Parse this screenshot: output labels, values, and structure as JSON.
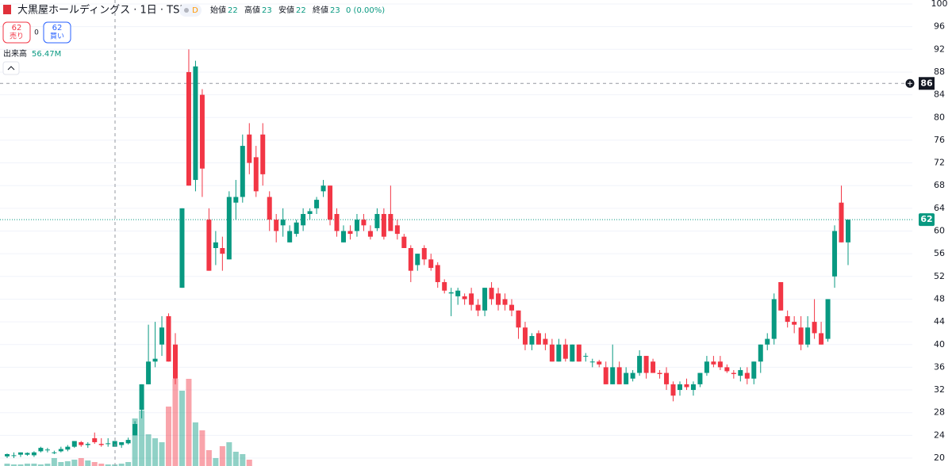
{
  "header": {
    "symbol": "大黒屋ホールディングス · 1日 · TSE",
    "interval": "D",
    "stats": [
      {
        "label": "始値",
        "value": 22
      },
      {
        "label": "高値",
        "value": 23
      },
      {
        "label": "安値",
        "value": 22
      },
      {
        "label": "終値",
        "value": 23
      }
    ],
    "change": "0 (0.00%)",
    "sell": {
      "price": 62,
      "label": "売り"
    },
    "spread": 0,
    "buy": {
      "price": 62,
      "label": "買い"
    }
  },
  "chart_data": {
    "type": "candlestick",
    "open": [
      20.3,
      20.5,
      20.6,
      20.6,
      20.5,
      21.2,
      21.5,
      21,
      21.2,
      21.5,
      22,
      22.8,
      22.3,
      23.5,
      22.5,
      22.5,
      22,
      22.3,
      22.6,
      24,
      28.5,
      33,
      37,
      40,
      45,
      40,
      50,
      88,
      69,
      84,
      62,
      57,
      57,
      55,
      65,
      66,
      77,
      73,
      77,
      66,
      62,
      61,
      58,
      59.5,
      61,
      63,
      64,
      67,
      68,
      63,
      58,
      60,
      60,
      62,
      60,
      60.5,
      63,
      63,
      61,
      59,
      57,
      54,
      57,
      55,
      54,
      51,
      49,
      48.5,
      48.5,
      49,
      47,
      46,
      50,
      49,
      48,
      47,
      46,
      43,
      40,
      42,
      41,
      40,
      37,
      40,
      37,
      40,
      38,
      37,
      37,
      36,
      33,
      36,
      33,
      34,
      35,
      38,
      37,
      35,
      35,
      33,
      32,
      33,
      32,
      33,
      35,
      37,
      37,
      36,
      35,
      34.5,
      35,
      34,
      37,
      40,
      41,
      51,
      45,
      44,
      43,
      40,
      44,
      42,
      41,
      52,
      65,
      58
    ],
    "high": [
      20.8,
      21,
      21,
      21,
      21.2,
      22,
      21.8,
      21.3,
      22,
      22.3,
      23,
      23,
      22.8,
      24.5,
      23.5,
      23.5,
      23,
      22.8,
      23.6,
      26.5,
      33,
      43.5,
      44,
      45,
      45.5,
      42,
      64,
      92,
      90,
      85,
      64,
      60,
      59,
      67,
      69,
      77,
      79,
      75,
      79,
      67,
      63,
      64,
      61,
      62,
      64,
      64,
      66,
      69,
      68,
      64,
      61,
      61,
      63,
      63,
      61,
      64,
      64,
      68,
      62,
      59.5,
      57.5,
      56,
      57.5,
      56,
      54.5,
      51.5,
      50,
      50,
      49,
      50,
      48,
      50,
      51,
      50,
      49,
      48,
      46,
      44,
      42,
      42.5,
      42,
      41,
      41,
      41,
      40,
      40,
      38.5,
      37.5,
      37.3,
      37,
      40,
      37,
      36,
      35.5,
      39,
      38,
      37.5,
      35.5,
      36,
      33.5,
      33.5,
      34,
      33.5,
      35,
      38,
      38,
      38,
      36.5,
      35.5,
      36,
      36,
      37,
      40,
      42,
      49,
      51,
      46,
      45,
      45,
      45,
      48,
      44,
      48,
      61,
      68,
      62
    ],
    "low": [
      20,
      20,
      20.2,
      20.4,
      20.2,
      21,
      21,
      20.7,
      21,
      21.2,
      21.8,
      22,
      21.8,
      22.5,
      22,
      22,
      22,
      21.8,
      22.4,
      24,
      27,
      33,
      36,
      38,
      37,
      33,
      50,
      68,
      67,
      66,
      53,
      54,
      53,
      55,
      62,
      65,
      70,
      66,
      68,
      60,
      58,
      59,
      58,
      59,
      60,
      62,
      63,
      66,
      61,
      59,
      58,
      58.5,
      59,
      60,
      58.5,
      60,
      58.5,
      60,
      58.5,
      57,
      51,
      53,
      54,
      53,
      50,
      49,
      45,
      47,
      47,
      46,
      45,
      45,
      47,
      46,
      46,
      45,
      41,
      39,
      39,
      40,
      39,
      37,
      37,
      37,
      37,
      37,
      37,
      36,
      36,
      33,
      33,
      33,
      33,
      33.5,
      34.5,
      34,
      35,
      34,
      32,
      30,
      31,
      32,
      31,
      32.5,
      34.5,
      36,
      35.5,
      35,
      34,
      33.5,
      33,
      33,
      35,
      39,
      40,
      46,
      43,
      42,
      39,
      39.5,
      41,
      40,
      40.5,
      50,
      58,
      54
    ],
    "close": [
      20.7,
      20.5,
      21,
      20.9,
      21,
      21.8,
      21.5,
      21,
      21.6,
      22,
      23,
      22.3,
      22.5,
      22.8,
      22.3,
      22.6,
      23,
      22.8,
      23.2,
      26,
      33,
      37,
      37.5,
      43,
      37,
      34,
      64,
      68,
      89,
      71,
      53,
      58,
      56,
      66,
      66,
      75,
      72,
      67,
      70,
      62,
      60,
      62,
      60,
      61.5,
      63,
      63.5,
      65.5,
      68,
      62,
      60,
      60,
      59.5,
      62,
      61,
      59,
      63,
      59,
      60,
      59.5,
      57,
      53,
      56,
      55,
      53.5,
      51,
      49.5,
      49.2,
      49.5,
      48,
      47,
      46,
      50,
      48,
      47,
      47,
      46,
      43,
      40,
      41.5,
      40,
      40,
      37,
      40,
      37.5,
      40,
      37,
      38,
      37,
      36.5,
      33,
      36,
      33,
      35,
      35,
      38,
      35,
      35,
      34.8,
      33,
      31,
      33,
      32.5,
      33,
      35,
      37,
      36.5,
      36,
      35.3,
      34.8,
      35.5,
      34,
      37,
      40,
      41,
      48,
      46,
      44,
      43.5,
      40,
      43,
      42,
      40,
      48,
      60,
      58,
      62
    ],
    "volume": [
      1.5,
      1,
      1,
      1.5,
      1.5,
      1,
      1.5,
      5,
      2.5,
      3,
      4,
      5,
      3.5,
      2.5,
      1.5,
      1,
      1,
      1.5,
      2.5,
      30,
      35,
      20,
      17.5,
      15,
      37.5,
      55,
      47.5,
      55,
      27.5,
      22.5,
      10,
      5,
      12.5,
      15,
      9,
      7.5,
      4,
      null,
      null,
      null,
      null,
      null,
      null,
      null,
      null,
      null,
      null,
      null,
      null,
      null,
      null,
      null,
      null,
      null,
      null,
      null,
      null,
      null,
      null,
      null,
      null,
      null,
      null,
      null,
      null,
      null,
      null,
      null,
      null,
      null,
      null,
      null,
      null,
      null,
      null,
      null,
      null,
      null,
      null,
      null,
      null,
      null,
      null,
      null,
      null,
      null,
      null,
      null,
      null,
      null,
      null,
      null,
      null,
      null,
      null,
      null,
      null,
      null,
      null,
      null,
      null,
      null,
      null,
      null,
      null,
      null,
      null,
      null,
      null,
      null,
      null,
      null,
      null,
      null,
      null,
      null,
      null,
      null,
      null,
      null,
      null,
      null,
      null,
      null,
      null,
      null
    ],
    "volume_label": "出来高",
    "volume_value_label": "56.47M",
    "ylim": [
      20,
      100
    ],
    "yticks": [
      20,
      24,
      28,
      32,
      36,
      40,
      44,
      48,
      52,
      56,
      60,
      64,
      68,
      72,
      76,
      80,
      84,
      88,
      92,
      96,
      100
    ],
    "up_color": "#089981",
    "down_color": "#f23645",
    "grid": true,
    "crosshair_price": 86,
    "last_price": 62
  }
}
